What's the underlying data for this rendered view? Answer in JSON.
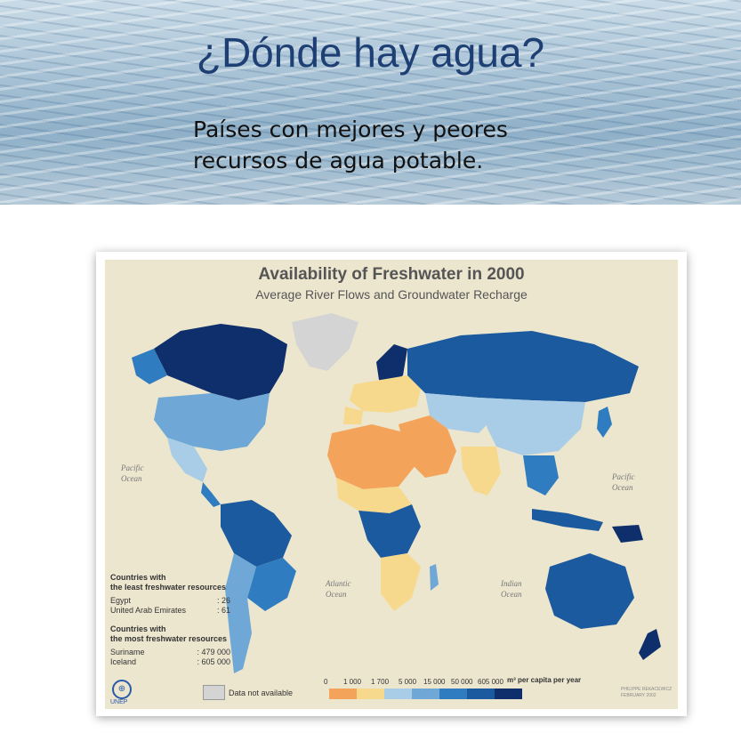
{
  "banner": {
    "title": "¿Dónde hay agua?",
    "subtitle_line1": "Países con mejores y peores",
    "subtitle_line2": "recursos de agua potable."
  },
  "map": {
    "title": "Availability of Freshwater in 2000",
    "subtitle": "Average River Flows and Groundwater Recharge",
    "oceans": [
      {
        "line1": "Pacific",
        "line2": "Ocean"
      },
      {
        "line1": "Atlantic",
        "line2": "Ocean"
      },
      {
        "line1": "Indian",
        "line2": "Ocean"
      },
      {
        "line1": "Pacific",
        "line2": "Ocean"
      }
    ],
    "least": {
      "heading1": "Countries with",
      "heading2": "the least freshwater resources",
      "rows": [
        {
          "country": "Egypt",
          "value": ": 26"
        },
        {
          "country": "United Arab Emirates",
          "value": ": 61"
        }
      ]
    },
    "most": {
      "heading1": "Countries with",
      "heading2": "the most freshwater resources",
      "rows": [
        {
          "country": "Suriname",
          "value": ": 479 000"
        },
        {
          "country": "Iceland",
          "value": ": 605 000"
        }
      ]
    },
    "legend": {
      "ticks": [
        "0",
        "1 000",
        "1 700",
        "5 000",
        "15 000",
        "50 000",
        "605 000"
      ],
      "unit": "m³ per capita per year",
      "colors": [
        "#f4a35a",
        "#f6d98c",
        "#a9cde6",
        "#6fa8d6",
        "#2f7cc0",
        "#1b5a9e",
        "#0e2f6b"
      ],
      "not_available_label": "Data not available",
      "not_available_color": "#d4d4d4"
    },
    "logo_label": "UNEP",
    "credit_line1": "PHILIPPE REKACEWICZ",
    "credit_line2": "FEBRUARY 2002"
  }
}
